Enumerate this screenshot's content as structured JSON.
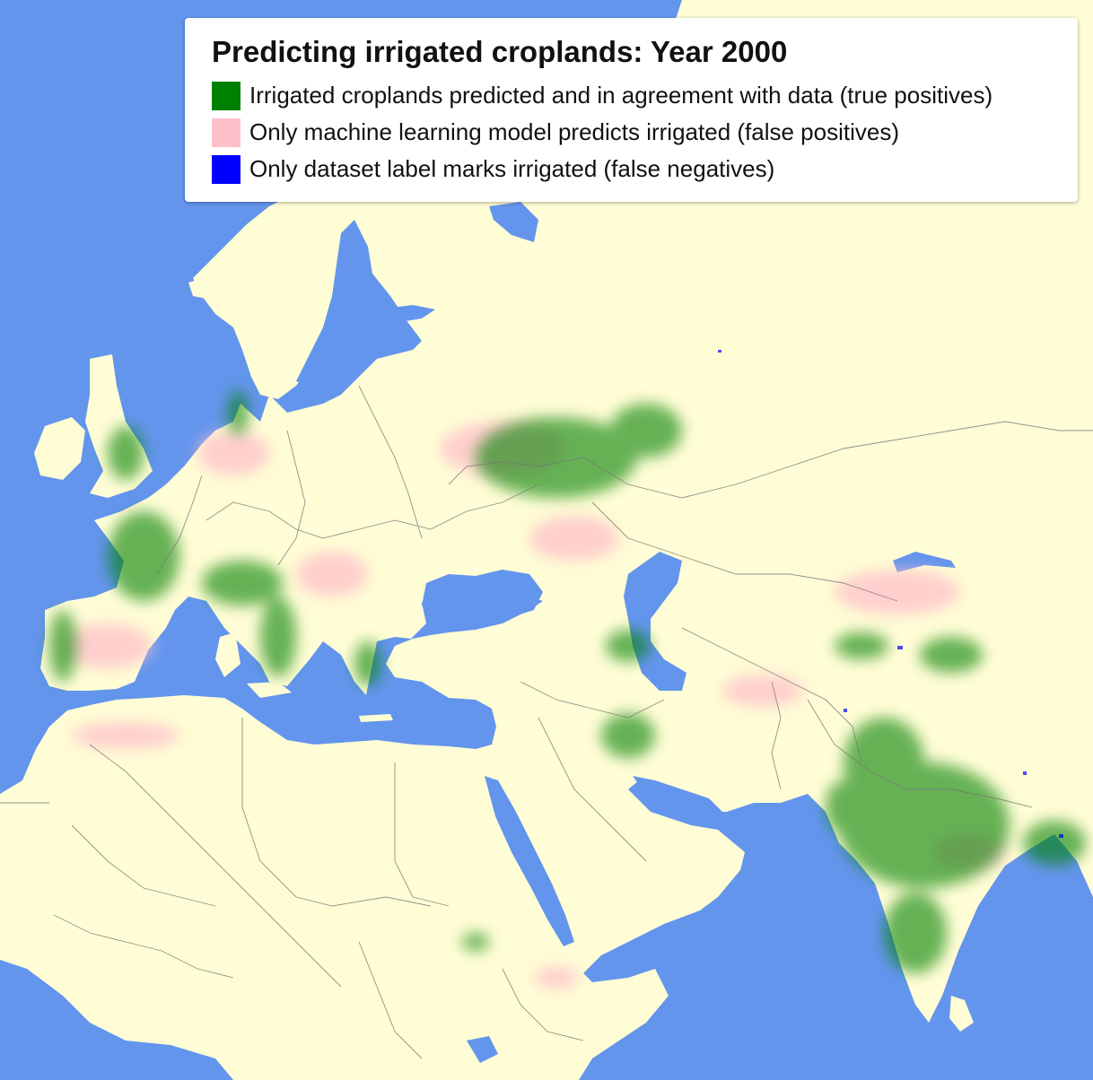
{
  "map": {
    "colors": {
      "ocean": "#6495ed",
      "land": "#fffdd5",
      "true_positive": "#008000",
      "false_positive": "#ffc0cb",
      "false_negative": "#0000ff",
      "border": "#777777"
    }
  },
  "legend": {
    "title": "Predicting irrigated croplands: Year 2000",
    "items": [
      {
        "label": "Irrigated croplands predicted and in agreement with data (true positives)",
        "color": "#008000"
      },
      {
        "label": "Only machine learning model predicts irrigated (false positives)",
        "color": "#ffc0cb"
      },
      {
        "label": "Only dataset label marks irrigated (false negatives)",
        "color": "#0000ff"
      }
    ]
  }
}
